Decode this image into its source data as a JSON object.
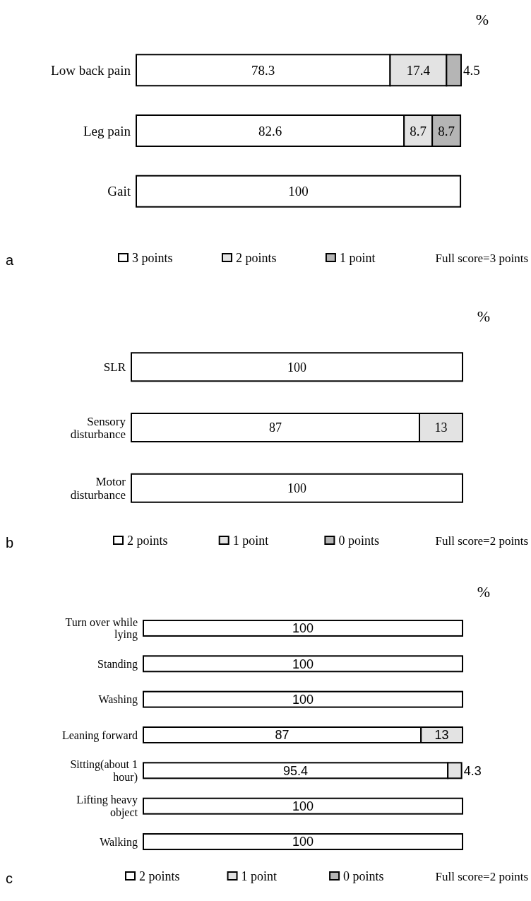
{
  "chart_data": [
    {
      "type": "bar",
      "orientation": "horizontal",
      "stacked": true,
      "legend": "bottom",
      "data_labels": true,
      "categories": [
        "Low back pain",
        "Leg pain",
        "Gait"
      ],
      "annotations": [
        "%",
        "a",
        "Full score=3 points"
      ],
      "series": [
        {
          "name": "3 points",
          "color": "#ffffff",
          "values": [
            78.3,
            82.6,
            100
          ],
          "value_labels": [
            "78.3",
            "82.6",
            "100"
          ]
        },
        {
          "name": "2 points",
          "color": "#e3e3e3",
          "values": [
            17.4,
            8.7,
            0
          ],
          "value_labels": [
            "17.4",
            "8.7",
            null
          ]
        },
        {
          "name": "1 point",
          "color": "#b5b5b5",
          "values": [
            4.5,
            8.7,
            0
          ],
          "value_labels": [
            "4.5",
            "8.7",
            null
          ]
        }
      ]
    },
    {
      "type": "bar",
      "orientation": "horizontal",
      "stacked": true,
      "legend": "bottom",
      "data_labels": true,
      "categories": [
        "SLR",
        "Sensory disturbance",
        "Motor disturbance"
      ],
      "annotations": [
        "%",
        "b",
        "Full score=2 points"
      ],
      "series": [
        {
          "name": "2 points",
          "color": "#ffffff",
          "values": [
            100,
            87,
            100
          ],
          "value_labels": [
            "100",
            "87",
            "100"
          ]
        },
        {
          "name": "1 point",
          "color": "#e3e3e3",
          "values": [
            0,
            13,
            0
          ],
          "value_labels": [
            null,
            "13",
            null
          ]
        },
        {
          "name": "0 points",
          "color": "#b5b5b5",
          "values": [
            0,
            0,
            0
          ],
          "value_labels": [
            null,
            null,
            null
          ]
        }
      ]
    },
    {
      "type": "bar",
      "orientation": "horizontal",
      "stacked": true,
      "legend": "bottom",
      "data_labels": true,
      "categories": [
        "Turn over while lying",
        "Standing",
        "Washing",
        "Leaning forward",
        "Sitting(about 1 hour)",
        "Lifting heavy object",
        "Walking"
      ],
      "annotations": [
        "%",
        "c",
        "Full score=2 points"
      ],
      "series": [
        {
          "name": "2 points",
          "color": "#ffffff",
          "values": [
            100,
            100,
            100,
            87,
            95.4,
            100,
            100
          ],
          "value_labels": [
            "100",
            "100",
            "100",
            "87",
            "95.4",
            "100",
            "100"
          ]
        },
        {
          "name": "1 point",
          "color": "#e3e3e3",
          "values": [
            0,
            0,
            0,
            13,
            4.3,
            0,
            0
          ],
          "value_labels": [
            null,
            null,
            null,
            "13",
            "4.3",
            null,
            null
          ]
        },
        {
          "name": "0 points",
          "color": "#b5b5b5",
          "values": [
            0,
            0,
            0,
            0,
            0,
            0,
            0
          ],
          "value_labels": [
            null,
            null,
            null,
            null,
            null,
            null,
            null
          ]
        }
      ]
    }
  ]
}
